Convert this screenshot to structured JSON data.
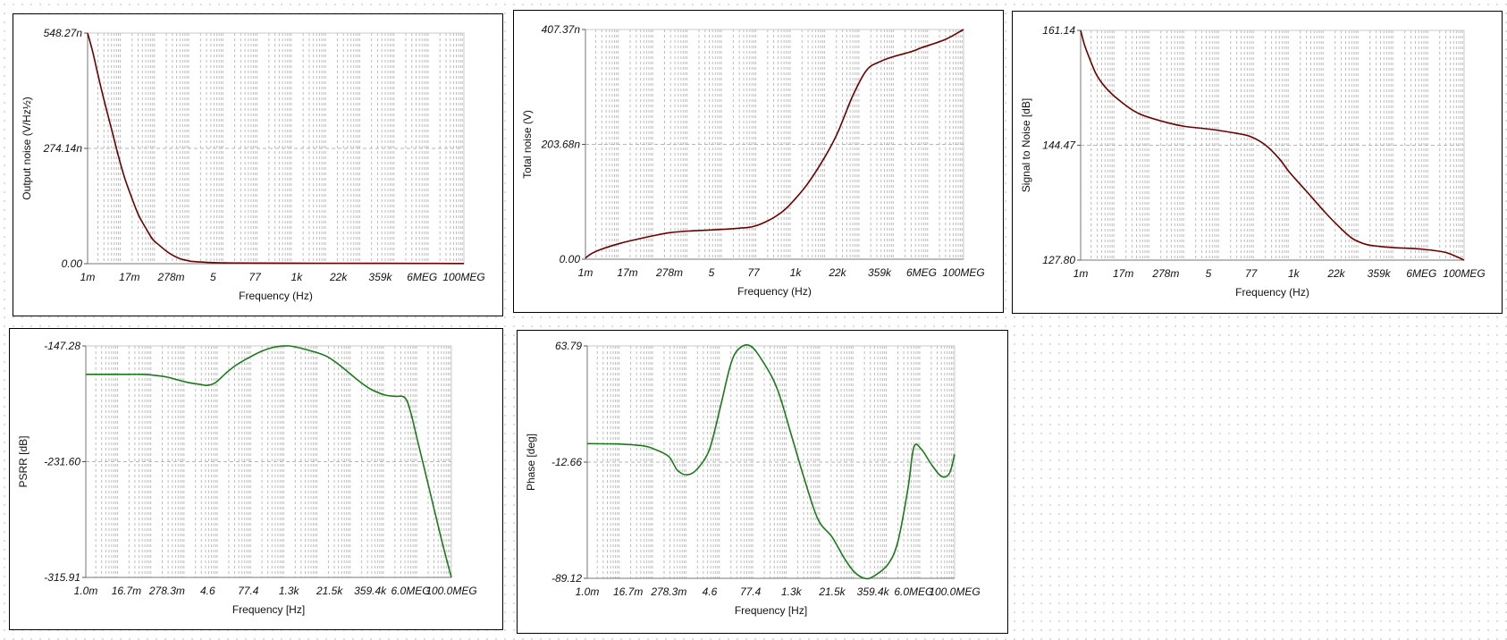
{
  "colors": {
    "noise_trace": "#6b0000",
    "psrr_trace": "#1a7a1a",
    "grid_minor": "#bdbdbd",
    "grid_major": "#b5b5b5"
  },
  "chart_data": [
    {
      "id": "output_noise",
      "type": "line",
      "xscale": "log",
      "xlabel": "Frequency (Hz)",
      "ylabel": "Output noise (V/Hz½)",
      "xlim": [
        "1m",
        "100MEG"
      ],
      "x_tick_labels": [
        "1m",
        "17m",
        "278m",
        "5",
        "77",
        "1k",
        "22k",
        "359k",
        "6MEG",
        "100MEG"
      ],
      "y_tick_labels": [
        "0.00",
        "274.14n",
        "548.27n"
      ],
      "y_ticks_value": [
        0,
        274.14,
        548.27
      ],
      "ylim_value": [
        0,
        548.27
      ],
      "y_unit": "nV/Hz½",
      "trace_color": "#6b0000",
      "series": [
        {
          "x": [
            0.001,
            0.0014,
            0.002,
            0.003,
            0.005,
            0.008,
            0.012,
            0.017,
            0.03,
            0.05,
            0.08,
            0.12,
            0.2,
            0.278,
            0.5,
            1,
            2,
            5,
            10,
            77,
            1000,
            22000,
            359000,
            6000000,
            100000000
          ],
          "y": [
            548.27,
            505,
            450,
            390,
            320,
            255,
            205,
            170,
            118,
            85,
            58,
            45,
            30,
            22,
            12,
            6,
            4,
            2.5,
            2,
            1.5,
            1.2,
            1,
            0.8,
            0.6,
            0.5
          ]
        }
      ]
    },
    {
      "id": "total_noise",
      "type": "line",
      "xscale": "log",
      "xlabel": "Frequency (Hz)",
      "ylabel": "Total noise (V)",
      "xlim": [
        "1m",
        "100MEG"
      ],
      "x_tick_labels": [
        "1m",
        "17m",
        "278m",
        "5",
        "77",
        "1k",
        "22k",
        "359k",
        "6MEG",
        "100MEG"
      ],
      "y_tick_labels": [
        "0.00",
        "203.68n",
        "407.37n"
      ],
      "y_ticks_value": [
        0,
        203.68,
        407.37
      ],
      "ylim_value": [
        0,
        407.37
      ],
      "y_unit": "nV",
      "trace_color": "#6b0000",
      "series": [
        {
          "x": [
            0.001,
            0.0015,
            0.003,
            0.01,
            0.03,
            0.1,
            0.278,
            1,
            5,
            30,
            77,
            200,
            500,
            1000,
            3000,
            10000,
            22000,
            60000,
            150000,
            359000,
            1000000,
            3000000,
            6000000,
            30000000,
            100000000
          ],
          "y": [
            2,
            10,
            18,
            28,
            35,
            42,
            47,
            50,
            52,
            55,
            58,
            68,
            83,
            100,
            135,
            185,
            225,
            290,
            335,
            350,
            360,
            368,
            375,
            390,
            407.37
          ]
        }
      ]
    },
    {
      "id": "signal_to_noise",
      "type": "line",
      "xscale": "log",
      "xlabel": "Frequency (Hz)",
      "ylabel": "Signal to Noise [dB]",
      "xlim": [
        "1m",
        "100MEG"
      ],
      "x_tick_labels": [
        "1m",
        "17m",
        "278m",
        "5",
        "77",
        "1k",
        "22k",
        "359k",
        "6MEG",
        "100MEG"
      ],
      "y_tick_labels": [
        "127.80",
        "144.47",
        "161.14"
      ],
      "ylim": [
        127.8,
        161.14
      ],
      "trace_color": "#6b0000",
      "series": [
        {
          "x": [
            0.001,
            0.0013,
            0.002,
            0.003,
            0.006,
            0.017,
            0.05,
            0.278,
            1,
            5,
            30,
            77,
            200,
            500,
            1000,
            3000,
            10000,
            22000,
            60000,
            150000,
            359000,
            1000000,
            6000000,
            30000000,
            100000000
          ],
          "y": [
            161.14,
            159,
            156.5,
            154.5,
            152.5,
            150.5,
            149,
            147.8,
            147.2,
            146.8,
            146.2,
            145.7,
            144.5,
            142.5,
            140.5,
            137.8,
            134.8,
            133,
            131,
            130.1,
            129.8,
            129.6,
            129.4,
            128.9,
            127.8
          ]
        }
      ]
    },
    {
      "id": "psrr",
      "type": "line",
      "xscale": "log",
      "xlabel": "Frequency [Hz]",
      "ylabel": "PSRR [dB]",
      "xlim": [
        "1.0m",
        "100.0MEG"
      ],
      "x_tick_labels": [
        "1.0m",
        "16.7m",
        "278.3m",
        "4.6",
        "77.4",
        "1.3k",
        "21.5k",
        "359.4k",
        "6.0MEG",
        "100.0MEG"
      ],
      "y_tick_labels": [
        "-315.91",
        "-231.60",
        "-147.28"
      ],
      "ylim": [
        -315.91,
        -147.28
      ],
      "trace_color": "#1a7a1a",
      "series": [
        {
          "x": [
            0.001,
            0.01,
            0.05,
            0.1,
            0.278,
            1,
            3,
            4.6,
            8,
            15,
            30,
            77.4,
            200,
            500,
            1300,
            3000,
            10000,
            21500,
            60000,
            150000,
            359400,
            1000000,
            2000000,
            4000000,
            6000000,
            10000000,
            20000000,
            50000000,
            100000000
          ],
          "y": [
            -168,
            -168,
            -168,
            -168.5,
            -170,
            -173.5,
            -175.5,
            -176,
            -174,
            -168,
            -162,
            -156,
            -151,
            -148,
            -147.28,
            -149,
            -152.5,
            -156,
            -164,
            -172,
            -178.5,
            -183,
            -184,
            -185,
            -196,
            -218,
            -248,
            -288,
            -315.91
          ]
        }
      ]
    },
    {
      "id": "phase",
      "type": "line",
      "xscale": "log",
      "xlabel": "Frequency [Hz]",
      "ylabel": "Phase [deg]",
      "xlim": [
        "1.0m",
        "100.0MEG"
      ],
      "x_tick_labels": [
        "1.0m",
        "16.7m",
        "278.3m",
        "4.6",
        "77.4",
        "1.3k",
        "21.5k",
        "359.4k",
        "6.0MEG",
        "100.0MEG"
      ],
      "y_tick_labels": [
        "-89.12",
        "-12.66",
        "63.79"
      ],
      "ylim": [
        -89.12,
        63.79
      ],
      "trace_color": "#1a7a1a",
      "series": [
        {
          "x": [
            0.001,
            0.01,
            0.05,
            0.1,
            0.278,
            0.5,
            1,
            2,
            4.6,
            10,
            20,
            35,
            77.4,
            200,
            500,
            1300,
            3000,
            8000,
            21500,
            50000,
            100000,
            200000,
            359400,
            1000000,
            2000000,
            4000000,
            6000000,
            10000000,
            20000000,
            40000000,
            70000000,
            100000000
          ],
          "y": [
            -0.5,
            -0.8,
            -2,
            -4,
            -9,
            -18,
            -21,
            -17,
            -4,
            25,
            52,
            62,
            63.79,
            52,
            35,
            5,
            -22,
            -50,
            -62,
            -76,
            -85,
            -89.12,
            -88,
            -80,
            -65,
            -30,
            -3,
            -4,
            -14,
            -22,
            -20,
            -7.5
          ]
        }
      ]
    }
  ]
}
